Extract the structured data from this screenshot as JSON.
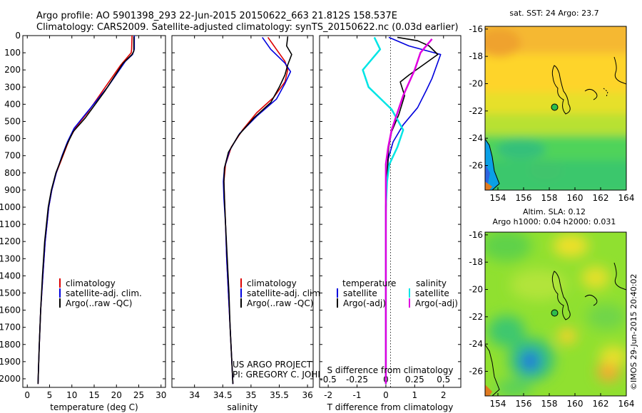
{
  "title_line1": "Argo profile: AO 5901398_293 22-Jun-2015 20150622_663 21.812S 158.537E",
  "title_line2": "Climatology: CARS2009. Satellite-adjusted climatology: synTS_20150622.nc (0.03d earlier)",
  "credit": "US ARGO PROJECT",
  "pi": "PI: GREGORY C. JOHNSON",
  "stamp": "©IMOS 29-Jun-2015 20:40:02",
  "colors": {
    "climatology": "#dd0000",
    "satellite": "#0000dd",
    "argo": "#000000",
    "sat_diff": "#00e5e5",
    "argo_diff": "#e000e0"
  },
  "chart_data": [
    {
      "type": "line",
      "xlabel": "temperature (deg C)",
      "xlim": [
        -1,
        31
      ],
      "xticks": [
        0,
        5,
        10,
        15,
        20,
        25,
        30
      ],
      "ylim": [
        2050,
        0
      ],
      "yticks": [
        0,
        100,
        200,
        300,
        400,
        500,
        600,
        700,
        800,
        900,
        1000,
        1100,
        1200,
        1300,
        1400,
        1500,
        1600,
        1700,
        1800,
        1900,
        2000
      ],
      "legend": [
        "climatology",
        "satellite-adj. clim.",
        "Argo(..raw -QC)"
      ],
      "series": [
        {
          "name": "climatology",
          "color": "#dd0000",
          "points": [
            [
              23.5,
              0
            ],
            [
              23.4,
              80
            ],
            [
              23.3,
              100
            ],
            [
              21,
              170
            ],
            [
              17.5,
              300
            ],
            [
              13.5,
              450
            ],
            [
              11,
              530
            ],
            [
              9.5,
              600
            ],
            [
              8,
              700
            ],
            [
              6.5,
              800
            ],
            [
              5.5,
              900
            ],
            [
              4.8,
              1000
            ],
            [
              4,
              1200
            ],
            [
              3.5,
              1400
            ],
            [
              3,
              1600
            ],
            [
              2.7,
              1800
            ],
            [
              2.5,
              1950
            ],
            [
              2.4,
              2030
            ]
          ]
        },
        {
          "name": "satellite-adj. clim.",
          "color": "#0000dd",
          "points": [
            [
              24,
              0
            ],
            [
              24,
              80
            ],
            [
              23.6,
              110
            ],
            [
              22,
              150
            ],
            [
              18,
              300
            ],
            [
              13,
              460
            ],
            [
              10.5,
              540
            ],
            [
              9,
              620
            ],
            [
              7.8,
              700
            ],
            [
              6.5,
              800
            ],
            [
              5.5,
              900
            ],
            [
              4.8,
              1000
            ],
            [
              4,
              1200
            ],
            [
              3.5,
              1400
            ],
            [
              3,
              1600
            ],
            [
              2.7,
              1800
            ],
            [
              2.5,
              1950
            ],
            [
              2.4,
              2030
            ]
          ]
        },
        {
          "name": "Argo(..raw -QC)",
          "color": "#000000",
          "points": [
            [
              23.9,
              5
            ],
            [
              23.9,
              90
            ],
            [
              23.5,
              110
            ],
            [
              21.5,
              160
            ],
            [
              17.5,
              320
            ],
            [
              13,
              480
            ],
            [
              10.3,
              560
            ],
            [
              8.8,
              640
            ],
            [
              7.6,
              720
            ],
            [
              6.4,
              800
            ],
            [
              5.4,
              900
            ],
            [
              4.7,
              1000
            ],
            [
              3.9,
              1200
            ],
            [
              3.4,
              1400
            ],
            [
              3,
              1600
            ],
            [
              2.7,
              1800
            ],
            [
              2.5,
              1950
            ],
            [
              2.4,
              2030
            ]
          ]
        }
      ]
    },
    {
      "type": "line",
      "xlabel": "salinity",
      "xlim": [
        33.6,
        36.1
      ],
      "xticks": [
        34,
        34.5,
        35,
        35.5,
        36
      ],
      "ylim": [
        2050,
        0
      ],
      "legend": [
        "climatology",
        "satellite-adj. clim.",
        "Argo(..raw -QC)"
      ],
      "series": [
        {
          "name": "climatology",
          "color": "#dd0000",
          "points": [
            [
              35.3,
              10
            ],
            [
              35.45,
              80
            ],
            [
              35.6,
              150
            ],
            [
              35.65,
              200
            ],
            [
              35.6,
              270
            ],
            [
              35.4,
              360
            ],
            [
              35.1,
              450
            ],
            [
              34.85,
              550
            ],
            [
              34.65,
              650
            ],
            [
              34.55,
              750
            ],
            [
              34.52,
              850
            ],
            [
              34.53,
              950
            ],
            [
              34.55,
              1100
            ],
            [
              34.57,
              1300
            ],
            [
              34.6,
              1500
            ],
            [
              34.63,
              1700
            ],
            [
              34.66,
              1900
            ],
            [
              34.68,
              2030
            ]
          ]
        },
        {
          "name": "satellite-adj. clim.",
          "color": "#0000dd",
          "points": [
            [
              35.2,
              10
            ],
            [
              35.35,
              80
            ],
            [
              35.6,
              160
            ],
            [
              35.7,
              210
            ],
            [
              35.6,
              280
            ],
            [
              35.45,
              370
            ],
            [
              35.1,
              470
            ],
            [
              34.8,
              570
            ],
            [
              34.62,
              670
            ],
            [
              34.53,
              770
            ],
            [
              34.51,
              850
            ],
            [
              34.52,
              950
            ],
            [
              34.55,
              1100
            ],
            [
              34.57,
              1300
            ],
            [
              34.6,
              1500
            ],
            [
              34.63,
              1700
            ],
            [
              34.66,
              1900
            ],
            [
              34.68,
              2030
            ]
          ]
        },
        {
          "name": "Argo(..raw -QC)",
          "color": "#000000",
          "points": [
            [
              35.65,
              5
            ],
            [
              35.63,
              60
            ],
            [
              35.72,
              110
            ],
            [
              35.65,
              170
            ],
            [
              35.6,
              230
            ],
            [
              35.5,
              300
            ],
            [
              35.35,
              390
            ],
            [
              35.05,
              480
            ],
            [
              34.78,
              580
            ],
            [
              34.6,
              680
            ],
            [
              34.53,
              770
            ],
            [
              34.52,
              850
            ],
            [
              34.53,
              950
            ],
            [
              34.55,
              1100
            ],
            [
              34.58,
              1300
            ],
            [
              34.61,
              1500
            ],
            [
              34.63,
              1700
            ],
            [
              34.66,
              1900
            ],
            [
              34.68,
              2030
            ]
          ]
        }
      ]
    },
    {
      "type": "line",
      "xlabel": "T difference from climatology",
      "xlabel_top": "S difference from climatology",
      "xlim": [
        -2.3,
        2.6
      ],
      "xticks": [
        -2,
        -1,
        0,
        1,
        2
      ],
      "xticks_s": [
        -0.5,
        -0.25,
        0,
        0.25,
        0.5
      ],
      "ylim": [
        2050,
        0
      ],
      "legend_t": {
        "title": "temperature",
        "items": [
          "satellite",
          "Argo(-adj)"
        ]
      },
      "legend_s": {
        "title": "salinity",
        "items": [
          "satellite",
          "Argo(-adj)"
        ]
      },
      "series": [
        {
          "name": "T satellite",
          "color": "#0000dd",
          "points": [
            [
              0.1,
              10
            ],
            [
              0.8,
              60
            ],
            [
              1.9,
              110
            ],
            [
              1.6,
              250
            ],
            [
              1.4,
              320
            ],
            [
              1.1,
              420
            ],
            [
              0.6,
              520
            ],
            [
              0.25,
              620
            ],
            [
              0.08,
              720
            ],
            [
              0.03,
              850
            ],
            [
              0.01,
              1000
            ],
            [
              0,
              1500
            ],
            [
              0,
              2030
            ]
          ]
        },
        {
          "name": "T Argo(-adj)",
          "color": "#000000",
          "points": [
            [
              0.4,
              10
            ],
            [
              1.1,
              30
            ],
            [
              1.5,
              60
            ],
            [
              1.8,
              110
            ],
            [
              1.3,
              170
            ],
            [
              0.8,
              230
            ],
            [
              0.5,
              270
            ],
            [
              0.65,
              350
            ],
            [
              0.45,
              460
            ],
            [
              0.2,
              560
            ],
            [
              0.1,
              650
            ],
            [
              0.05,
              780
            ],
            [
              0.02,
              900
            ],
            [
              0,
              1100
            ],
            [
              0,
              2030
            ]
          ]
        },
        {
          "name": "S satellite",
          "color": "#00e5e5",
          "points": [
            [
              -0.1,
              10
            ],
            [
              -0.05,
              80
            ],
            [
              -0.2,
              200
            ],
            [
              -0.15,
              300
            ],
            [
              0.05,
              430
            ],
            [
              0.15,
              550
            ],
            [
              0.1,
              650
            ],
            [
              0.03,
              750
            ],
            [
              0.01,
              850
            ],
            [
              0,
              1000
            ],
            [
              0,
              2030
            ]
          ]
        },
        {
          "name": "S Argo(-adj)",
          "color": "#e000e0",
          "points": [
            [
              0.4,
              20
            ],
            [
              0.3,
              100
            ],
            [
              0.25,
              200
            ],
            [
              0.15,
              350
            ],
            [
              0.1,
              450
            ],
            [
              0.05,
              550
            ],
            [
              0.02,
              650
            ],
            [
              0,
              750
            ],
            [
              0,
              900
            ],
            [
              0,
              2030
            ]
          ]
        }
      ]
    },
    {
      "type": "heatmap",
      "title": "sat. SST: 24 Argo: 23.7",
      "xlim": [
        153,
        164
      ],
      "ylim": [
        -27.8,
        -15.8
      ],
      "xticks": [
        154,
        156,
        158,
        160,
        162,
        164
      ],
      "yticks": [
        -16,
        -18,
        -20,
        -22,
        -24,
        -26
      ],
      "argo_position": [
        158.537,
        -21.812
      ]
    },
    {
      "type": "heatmap",
      "title_line1": "Altim. SLA: 0.12",
      "title_line2": "Argo h1000: 0.04 h2000: 0.031",
      "xlim": [
        153,
        164
      ],
      "ylim": [
        -27.8,
        -15.8
      ],
      "xticks": [
        154,
        156,
        158,
        160,
        162,
        164
      ],
      "yticks": [
        -16,
        -18,
        -20,
        -22,
        -24,
        -26
      ],
      "argo_position": [
        158.537,
        -21.812
      ]
    }
  ]
}
